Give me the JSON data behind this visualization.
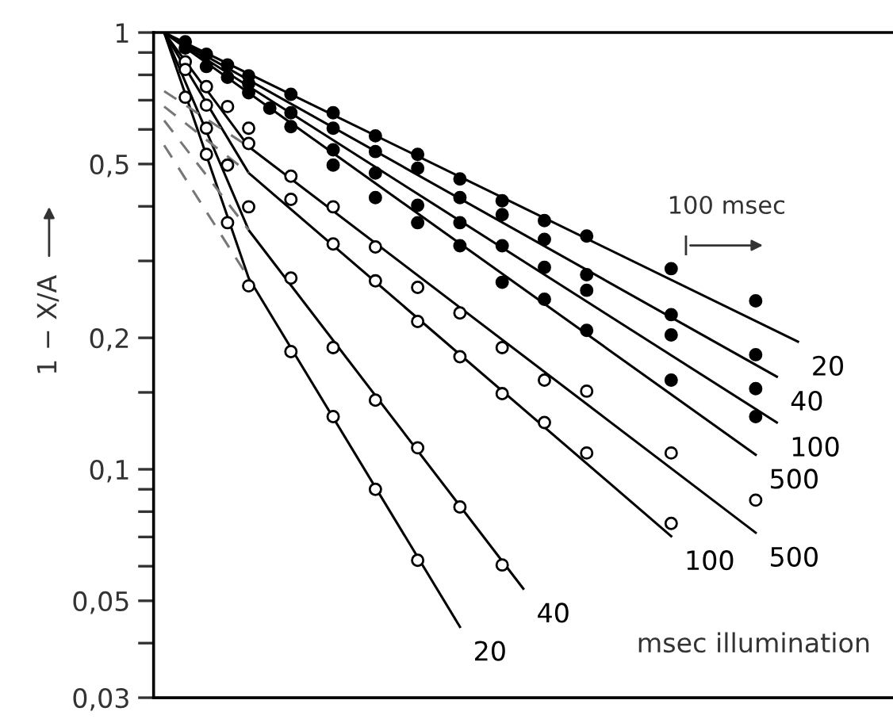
{
  "chart_data": {
    "type": "scatter",
    "ylabel": "1 − X/A",
    "log": "y",
    "ylim": [
      0.03,
      1
    ],
    "categories": [
      null,
      null,
      null,
      null,
      null,
      null,
      null,
      null,
      null,
      null,
      null,
      null,
      null,
      null,
      null,
      null,
      null,
      null,
      null,
      null,
      null,
      null,
      null,
      null,
      null,
      null,
      null,
      null,
      null,
      null,
      null,
      null,
      null,
      null,
      null
    ],
    "yticks": [
      {
        "value": 1,
        "label": "1"
      },
      {
        "value": 0.9,
        "label": null
      },
      {
        "value": 0.8,
        "label": null
      },
      {
        "value": 0.7,
        "label": null
      },
      {
        "value": 0.6,
        "label": null
      },
      {
        "value": 0.5,
        "label": "0,5"
      },
      {
        "value": 0.4,
        "label": null
      },
      {
        "value": 0.3,
        "label": null
      },
      {
        "value": 0.2,
        "label": "0,2"
      },
      {
        "value": 0.15,
        "label": null
      },
      {
        "value": 0.1,
        "label": "0,1"
      },
      {
        "value": 0.09,
        "label": null
      },
      {
        "value": 0.08,
        "label": null
      },
      {
        "value": 0.07,
        "label": null
      },
      {
        "value": 0.06,
        "label": null
      },
      {
        "value": 0.05,
        "label": "0,05"
      },
      {
        "value": 0.04,
        "label": null
      },
      {
        "value": 0.03,
        "label": "0,03"
      }
    ],
    "tick_labels": "y",
    "marker": "circle",
    "annotations": [
      "100 msec",
      "msec illumination"
    ],
    "series": [
      {
        "color": "#000000",
        "values": [
          null,
          0.952,
          0.892,
          0.843,
          0.796,
          null,
          0.722,
          null,
          0.655,
          null,
          0.58,
          null,
          0.526,
          null,
          0.462,
          null,
          0.412,
          null,
          0.371,
          null,
          0.342,
          null,
          null,
          null,
          0.288,
          null,
          null,
          null,
          0.243,
          null,
          null,
          null,
          null,
          null,
          null
        ]
      },
      {
        "color": "#000000",
        "values": [
          null,
          0.922,
          0.836,
          0.79,
          0.765,
          null,
          0.655,
          null,
          0.604,
          null,
          0.534,
          null,
          0.489,
          null,
          0.419,
          null,
          0.383,
          null,
          0.336,
          null,
          0.279,
          null,
          null,
          null,
          0.226,
          null,
          null,
          null,
          0.183,
          null,
          null,
          null,
          null,
          null,
          null
        ]
      },
      {
        "color": "#000000",
        "values": [
          null,
          null,
          null,
          null,
          0.728,
          null,
          0.609,
          null,
          0.539,
          null,
          0.477,
          null,
          0.402,
          null,
          0.367,
          null,
          0.325,
          null,
          0.29,
          null,
          0.257,
          null,
          null,
          null,
          0.203,
          null,
          null,
          null,
          0.153,
          null,
          null,
          null,
          null,
          null,
          null
        ]
      },
      {
        "color": "#000000",
        "values": [
          null,
          null,
          null,
          null,
          null,
          0.671,
          null,
          null,
          0.497,
          null,
          0.419,
          null,
          0.367,
          null,
          0.325,
          null,
          0.268,
          null,
          0.245,
          null,
          0.208,
          null,
          null,
          null,
          0.16,
          null,
          null,
          null,
          0.132,
          null,
          null,
          null,
          null,
          null,
          null
        ]
      },
      {
        "color": "#ffffff",
        "values": [
          null,
          null,
          0.752,
          0.677,
          0.604,
          null,
          0.469,
          null,
          0.399,
          null,
          0.323,
          null,
          0.261,
          null,
          0.228,
          null,
          0.19,
          null,
          0.16,
          null,
          0.151,
          null,
          null,
          null,
          0.109,
          null,
          null,
          null,
          0.085,
          null,
          null,
          null,
          null,
          null,
          null
        ]
      },
      {
        "color": "#ffffff",
        "values": [
          null,
          0.857,
          0.682,
          null,
          0.557,
          null,
          0.415,
          null,
          0.328,
          null,
          0.27,
          null,
          0.218,
          null,
          0.181,
          null,
          0.149,
          null,
          0.128,
          null,
          0.109,
          null,
          null,
          null,
          0.0752,
          null,
          null,
          null,
          null,
          null,
          null,
          null,
          null,
          null,
          null
        ]
      },
      {
        "color": "#ffffff",
        "values": [
          null,
          0.823,
          0.604,
          0.497,
          0.399,
          null,
          0.274,
          null,
          0.19,
          null,
          0.144,
          null,
          0.112,
          null,
          0.082,
          null,
          0.0604,
          null,
          null,
          null,
          null,
          null,
          null,
          null,
          null,
          null,
          null,
          null,
          null,
          null,
          null,
          null,
          null,
          null,
          null
        ]
      },
      {
        "color": "#ffffff",
        "values": [
          null,
          0.711,
          0.526,
          0.367,
          0.263,
          null,
          0.186,
          null,
          0.132,
          null,
          0.09,
          null,
          0.0619,
          null,
          null,
          null,
          null,
          null,
          null,
          null,
          null,
          null,
          null,
          null,
          null,
          null,
          null,
          null,
          null,
          null,
          null,
          null,
          null,
          null,
          null
        ]
      },
      {
        "type": "line",
        "marker": "none",
        "name": "20",
        "color": "#000000",
        "line_style": "solid",
        "values": [
          1,
          null,
          null,
          null,
          null,
          null,
          null,
          null,
          null,
          null,
          null,
          null,
          null,
          null,
          null,
          null,
          null,
          null,
          null,
          null,
          null,
          null,
          null,
          null,
          null,
          null,
          null,
          null,
          null,
          null,
          0.196,
          null,
          null,
          null,
          null
        ]
      },
      {
        "type": "line",
        "marker": "none",
        "name": "40",
        "color": "#000000",
        "line_style": "solid",
        "values": [
          1,
          null,
          null,
          null,
          null,
          null,
          null,
          null,
          null,
          null,
          null,
          null,
          null,
          null,
          null,
          null,
          null,
          null,
          null,
          null,
          null,
          null,
          null,
          null,
          null,
          null,
          null,
          null,
          null,
          0.163,
          null,
          null,
          null,
          null,
          null
        ]
      },
      {
        "type": "line",
        "marker": "none",
        "name": "100",
        "color": "#000000",
        "line_style": "solid",
        "values": [
          1,
          null,
          null,
          null,
          null,
          null,
          null,
          null,
          null,
          null,
          null,
          null,
          null,
          null,
          null,
          null,
          null,
          null,
          null,
          null,
          null,
          null,
          null,
          null,
          null,
          null,
          null,
          null,
          null,
          0.128,
          null,
          null,
          null,
          null,
          null
        ]
      },
      {
        "type": "line",
        "marker": "none",
        "name": "500",
        "color": "#000000",
        "line_style": "solid",
        "values": [
          1,
          null,
          null,
          null,
          null,
          null,
          null,
          null,
          null,
          null,
          null,
          null,
          null,
          null,
          null,
          null,
          null,
          null,
          null,
          null,
          null,
          null,
          null,
          null,
          null,
          null,
          null,
          null,
          0.108,
          null,
          null,
          null,
          null,
          null,
          null
        ]
      },
      {
        "type": "line",
        "marker": "none",
        "name": "500",
        "color": "#000000",
        "line_style": "solid",
        "values": [
          1,
          null,
          null,
          null,
          0.548,
          null,
          null,
          null,
          null,
          null,
          null,
          null,
          null,
          null,
          null,
          null,
          null,
          null,
          null,
          null,
          null,
          null,
          null,
          null,
          null,
          null,
          null,
          null,
          0.0716,
          null,
          null,
          null,
          null,
          null,
          null
        ]
      },
      {
        "type": "line",
        "marker": "none",
        "name": "100",
        "color": "#000000",
        "line_style": "solid",
        "values": [
          1,
          null,
          null,
          null,
          0.477,
          null,
          null,
          null,
          null,
          null,
          null,
          null,
          null,
          null,
          null,
          null,
          null,
          null,
          null,
          null,
          null,
          null,
          null,
          null,
          0.0703,
          null,
          null,
          null,
          null,
          null,
          null,
          null,
          null,
          null,
          null
        ]
      },
      {
        "type": "line",
        "marker": "none",
        "name": "40",
        "color": "#000000",
        "line_style": "solid",
        "values": [
          1,
          null,
          null,
          null,
          0.353,
          null,
          null,
          null,
          null,
          null,
          null,
          null,
          null,
          null,
          null,
          null,
          null,
          0.0533,
          null,
          null,
          null,
          null,
          null,
          null,
          null,
          null,
          null,
          null,
          null,
          null,
          null,
          null,
          null,
          null,
          null
        ]
      },
      {
        "type": "line",
        "marker": "none",
        "name": "20",
        "color": "#000000",
        "line_style": "solid",
        "values": [
          1,
          null,
          null,
          null,
          0.274,
          null,
          null,
          null,
          null,
          null,
          null,
          null,
          null,
          null,
          0.0436,
          null,
          null,
          null,
          null,
          null,
          null,
          null,
          null,
          null,
          null,
          null,
          null,
          null,
          null,
          null,
          null,
          null,
          null,
          null,
          null
        ]
      },
      {
        "type": "line",
        "marker": "none",
        "color": "#777777",
        "line_style": "dashed",
        "values": [
          0.734,
          null,
          null,
          null,
          0.548,
          null,
          null,
          null,
          null,
          null,
          null,
          null,
          null,
          null,
          null,
          null,
          null,
          null,
          null,
          null,
          null,
          null,
          null,
          null,
          null,
          null,
          null,
          null,
          null,
          null,
          null,
          null,
          null,
          null,
          null
        ]
      },
      {
        "type": "line",
        "marker": "none",
        "color": "#777777",
        "line_style": "dashed",
        "values": [
          0.677,
          null,
          null,
          null,
          0.477,
          null,
          null,
          null,
          null,
          null,
          null,
          null,
          null,
          null,
          null,
          null,
          null,
          null,
          null,
          null,
          null,
          null,
          null,
          null,
          null,
          null,
          null,
          null,
          null,
          null,
          null,
          null,
          null,
          null,
          null
        ]
      },
      {
        "type": "line",
        "marker": "none",
        "color": "#777777",
        "line_style": "dashed",
        "values": [
          0.629,
          null,
          null,
          null,
          0.353,
          null,
          null,
          null,
          null,
          null,
          null,
          null,
          null,
          null,
          null,
          null,
          null,
          null,
          null,
          null,
          null,
          null,
          null,
          null,
          null,
          null,
          null,
          null,
          null,
          null,
          null,
          null,
          null,
          null,
          null
        ]
      },
      {
        "type": "line",
        "marker": "none",
        "color": "#777777",
        "line_style": "dashed",
        "values": [
          0.552,
          null,
          null,
          null,
          0.274,
          null,
          null,
          null,
          null,
          null,
          null,
          null,
          null,
          null,
          null,
          null,
          null,
          null,
          null,
          null,
          null,
          null,
          null,
          null,
          null,
          null,
          null,
          null,
          null,
          null,
          null,
          null,
          null,
          null,
          null
        ]
      }
    ]
  }
}
